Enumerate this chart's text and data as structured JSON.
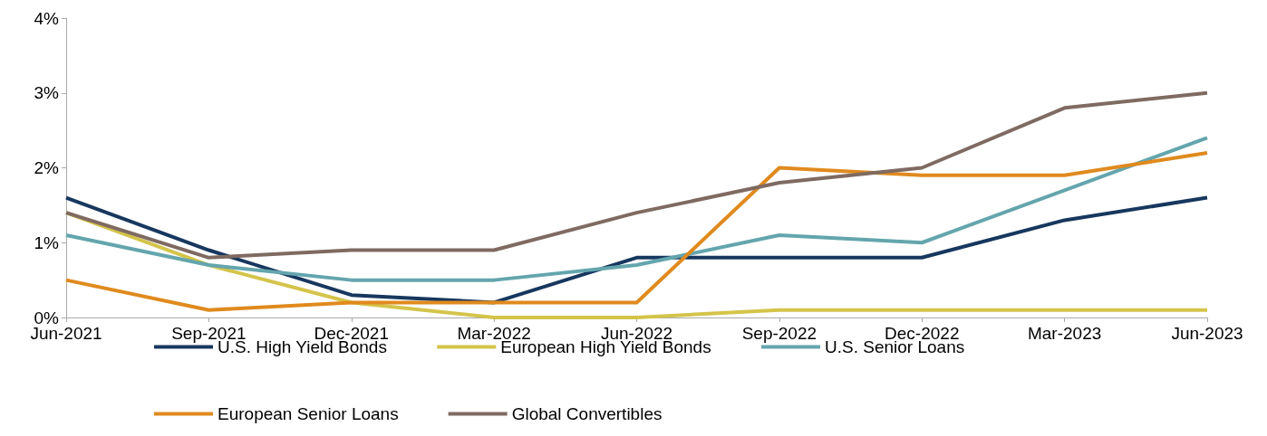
{
  "chart_data": {
    "type": "line",
    "categories": [
      "Jun-2021",
      "Sep-2021",
      "Dec-2021",
      "Mar-2022",
      "Jun-2022",
      "Sep-2022",
      "Dec-2022",
      "Mar-2023",
      "Jun-2023"
    ],
    "series": [
      {
        "name": "U.S. High Yield Bonds",
        "color": "#17375e",
        "values": [
          1.6,
          0.9,
          0.3,
          0.2,
          0.8,
          0.8,
          0.8,
          1.3,
          1.6
        ]
      },
      {
        "name": "European High Yield Bonds",
        "color": "#d4c44a",
        "values": [
          1.4,
          0.7,
          0.2,
          0.0,
          0.0,
          0.1,
          0.1,
          0.1,
          0.1
        ]
      },
      {
        "name": "U.S. Senior Loans",
        "color": "#64a5ad",
        "values": [
          1.1,
          0.7,
          0.5,
          0.5,
          0.7,
          1.1,
          1.0,
          1.7,
          2.4
        ]
      },
      {
        "name": "European Senior Loans",
        "color": "#e08a1e",
        "values": [
          0.5,
          0.1,
          0.2,
          0.2,
          0.2,
          2.0,
          1.9,
          1.9,
          2.2
        ]
      },
      {
        "name": "Global Convertibles",
        "color": "#7f6a62",
        "values": [
          1.4,
          0.8,
          0.9,
          0.9,
          1.4,
          1.8,
          2.0,
          2.8,
          3.0
        ]
      }
    ],
    "ylim": [
      0,
      4
    ],
    "yticks": [
      {
        "value": 0,
        "label": "0%"
      },
      {
        "value": 1,
        "label": "1%"
      },
      {
        "value": 2,
        "label": "2%"
      },
      {
        "value": 3,
        "label": "3%"
      },
      {
        "value": 4,
        "label": "4%"
      }
    ],
    "grid": false,
    "legend": "bottom",
    "marker": "none",
    "line_style": "solid"
  }
}
